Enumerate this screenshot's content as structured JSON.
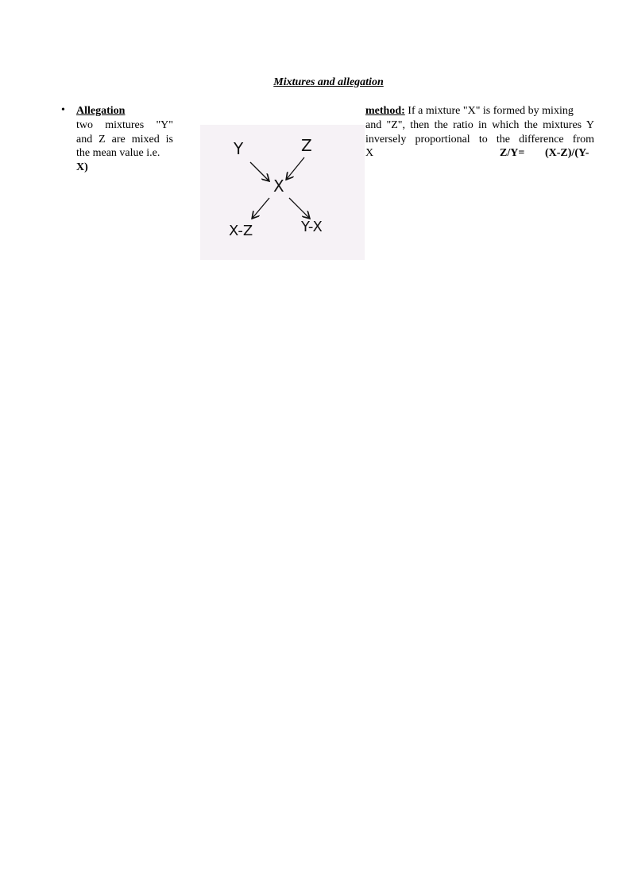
{
  "title": "Mixtures and allegation",
  "bullet": "•",
  "heading_left": "Allegation",
  "heading_right": "method:",
  "left_lines": [
    "two mixtures \"Y\"",
    "and Z are mixed is",
    "the mean value i.e.",
    "X)"
  ],
  "right_lines": [
    " If a mixture \"X\" is formed by mixing",
    "and \"Z\", then the ratio in which the mixtures Y",
    "inversely proportional to the difference from"
  ],
  "right_last": {
    "x": "X",
    "formula_a": "Z/Y=",
    "formula_b": "(X-Z)/(Y-"
  },
  "figure": {
    "top_left": "Y",
    "top_right": "Z",
    "center": "X",
    "bottom_left": "X-Z",
    "bottom_right": "Y-X"
  }
}
